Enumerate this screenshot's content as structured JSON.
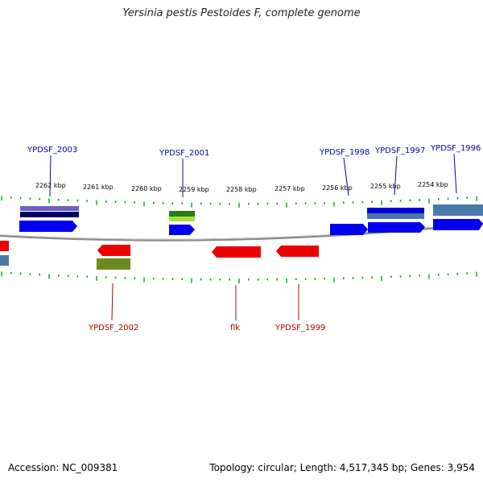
{
  "title": "Yersinia pestis Pestoides F, complete genome",
  "footer": {
    "accession": "Accession: NC_009381",
    "summary": "Topology: circular; Length: 4,517,345 bp; Genes: 3,954"
  },
  "kbp_labels": [
    "2262 kbp",
    "2261 kbp",
    "2260 kbp",
    "2259 kbp",
    "2258 kbp",
    "2257 kbp",
    "2256 kbp",
    "2255 kbp",
    "2254 kbp"
  ],
  "gene_labels_top": [
    "YPDSF_2003",
    "YPDSF_2001",
    "YPDSF_1998",
    "YPDSF_1997",
    "YPDSF_1996"
  ],
  "gene_labels_bottom": [
    "YPDSF_2002",
    "flk",
    "YPDSF_1999"
  ],
  "colors": {
    "forward_cds": "#0000ee",
    "reverse_cds": "#ee0000",
    "green_feature": "#3a8a10",
    "olive_feature": "#6b8a20",
    "steel_feature": "#4a78a8",
    "purple_feature": "#6a60c8",
    "tick_green": "#00aa00",
    "backbone": "#888888",
    "top_label": "#0000b0",
    "bottom_label": "#b00000"
  }
}
